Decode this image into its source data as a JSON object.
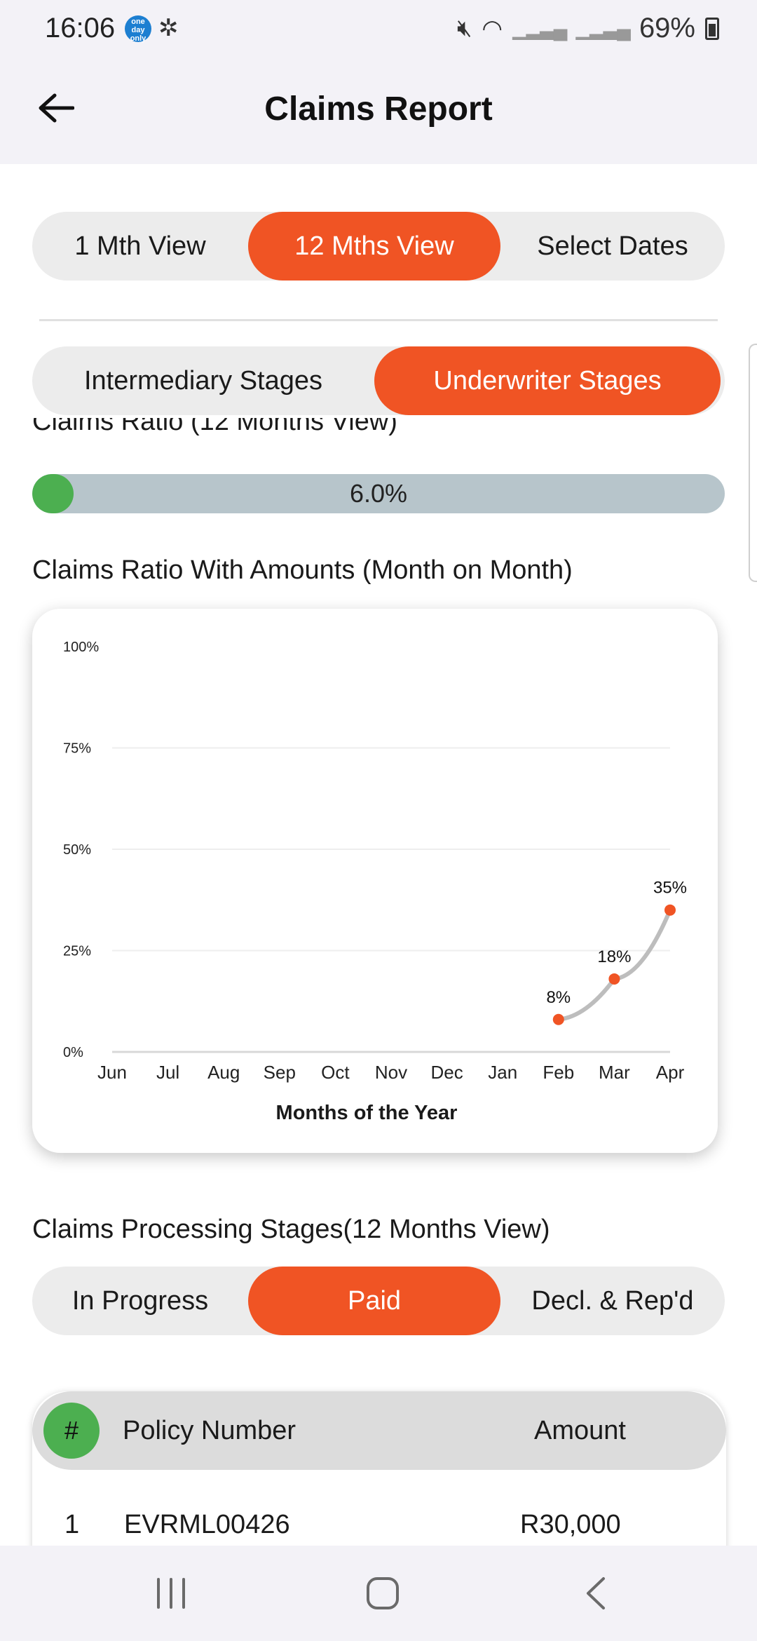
{
  "status_bar": {
    "time": "16:06",
    "app_badge_text": "one day only",
    "battery": "69%"
  },
  "app_bar": {
    "title": "Claims Report",
    "back_icon": "arrow-left-icon"
  },
  "view_toggle": {
    "options": [
      "1 Mth View",
      "12 Mths View",
      "Select Dates"
    ],
    "selected": "12 Mths View"
  },
  "stage_toggle": {
    "options": [
      "Intermediary Stages",
      "Underwriter Stages"
    ],
    "selected": "Underwriter Stages"
  },
  "claims_ratio": {
    "title": "Claims Ratio  (12 Months View)",
    "value_text": "6.0%",
    "value": 6.0
  },
  "chart_section_title": "Claims Ratio With Amounts (Month on Month)",
  "chart_data": {
    "type": "line",
    "categories": [
      "Jun",
      "Jul",
      "Aug",
      "Sep",
      "Oct",
      "Nov",
      "Dec",
      "Jan",
      "Feb",
      "Mar",
      "Apr"
    ],
    "series": [
      {
        "values": [
          null,
          null,
          null,
          null,
          null,
          null,
          null,
          null,
          8,
          18,
          35
        ],
        "labels": [
          "8%",
          "18%",
          "35%"
        ]
      }
    ],
    "ylim": [
      0,
      100
    ],
    "yticks": [
      "0%",
      "25%",
      "50%",
      "75%",
      "100%"
    ],
    "xlabel": "Months of the Year",
    "ylabel": "",
    "grid": true,
    "colors": {
      "line": "#bdbdbd",
      "point": "#f05424"
    }
  },
  "processing": {
    "title": "Claims Processing Stages(12 Months View)",
    "options": [
      "In Progress",
      "Paid",
      "Decl. & Rep'd"
    ],
    "selected": "Paid"
  },
  "table": {
    "headers": {
      "index": "#",
      "policy": "Policy Number",
      "amount": "Amount"
    },
    "rows": [
      {
        "num": "1",
        "policy": "EVRML00426",
        "amount": "R30,000"
      }
    ]
  },
  "colors": {
    "accent": "#f05424",
    "green": "#4caf50",
    "bar_track": "#b7c5cb"
  },
  "nav_icons": [
    "recent-apps-icon",
    "home-icon",
    "back-icon"
  ]
}
